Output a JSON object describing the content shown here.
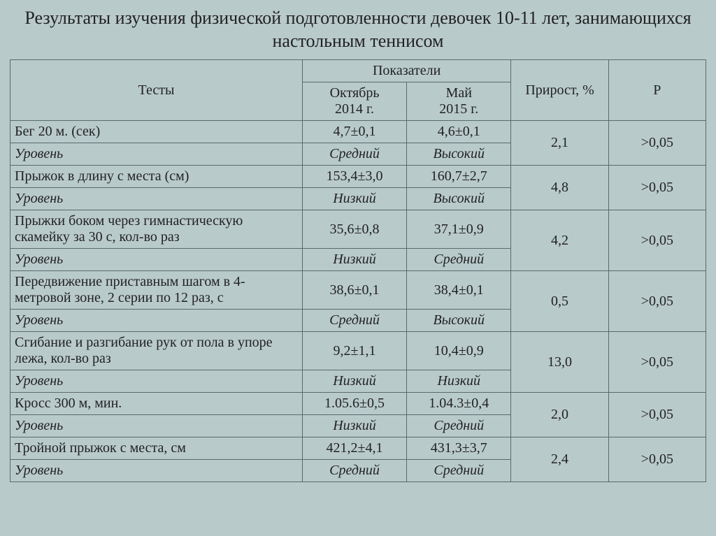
{
  "title": "Результаты изучения физической подготовленности девочек 10-11 лет, занимающихся настольным теннисом",
  "headers": {
    "tests": "Тесты",
    "indicators": "Показатели",
    "growth": "Прирост, %",
    "p": "P",
    "period1_l1": "Октябрь",
    "period1_l2": "2014 г.",
    "period2_l1": "Май",
    "period2_l2": "2015 г."
  },
  "level_label": "Уровень",
  "rows": [
    {
      "test": "Бег 20 м. (сек)",
      "v1": "4,7±0,1",
      "v2": "4,6±0,1",
      "l1": "Средний",
      "l2": "Высокий",
      "growth": "2,1",
      "p": ">0,05"
    },
    {
      "test": "Прыжок в длину  с  места (см)",
      "v1": "153,4±3,0",
      "v2": "160,7±2,7",
      "l1": "Низкий",
      "l2": "Высокий",
      "growth": "4,8",
      "p": ">0,05"
    },
    {
      "test": "Прыжки боком через гимнастическую скамейку за 30 с, кол-во раз",
      "v1": "35,6±0,8",
      "v2": "37,1±0,9",
      "l1": "Низкий",
      "l2": "Средний",
      "growth": "4,2",
      "p": ">0,05"
    },
    {
      "test": "Передвижение приставным шагом в 4-метровой зоне, 2 серии по 12 раз, с",
      "v1": "38,6±0,1",
      "v2": "38,4±0,1",
      "l1": "Средний",
      "l2": "Высокий",
      "growth": "0,5",
      "p": ">0,05"
    },
    {
      "test": "Сгибание и разгибание рук от пола в упоре лежа, кол-во раз",
      "v1": "9,2±1,1",
      "v2": "10,4±0,9",
      "l1": "Низкий",
      "l2": "Низкий",
      "growth": "13,0",
      "p": ">0,05"
    },
    {
      "test": "Кросс 300 м, мин.",
      "v1": "1.05.6±0,5",
      "v2": "1.04.3±0,4",
      "l1": "Низкий",
      "l2": "Средний",
      "growth": "2,0",
      "p": ">0,05"
    },
    {
      "test": "Тройной прыжок с места, см",
      "v1": "421,2±4,1",
      "v2": "431,3±3,7",
      "l1": "Средний",
      "l2": "Средний",
      "growth": "2,4",
      "p": ">0,05"
    }
  ],
  "style": {
    "background_color": "#b9cacb",
    "border_color": "#5a6a6a",
    "font_family": "Georgia, Times New Roman, serif",
    "title_fontsize": 26,
    "cell_fontsize": 20,
    "col_widths_pct": {
      "tests": 42,
      "ind": 15,
      "growth": 14,
      "p": 14
    }
  }
}
